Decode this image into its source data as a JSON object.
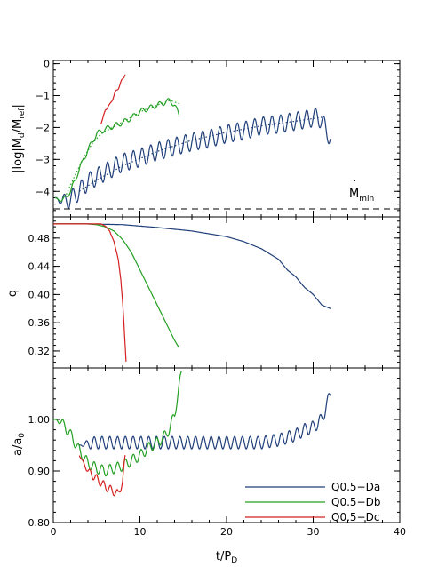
{
  "chart_data": [
    {
      "type": "line",
      "panel": "top",
      "ylabel": "|log|Ṁd/Ṁref|",
      "ylabel_parts": {
        "pre": "|log|",
        "m1": "M",
        "s1": "d",
        "mid": "/",
        "m2": "M",
        "s2": "ref",
        "post": "|"
      },
      "xlim": [
        0,
        40
      ],
      "ylim": [
        -4.8,
        0.1
      ],
      "yticks": [
        0,
        -1,
        -2,
        -3,
        -4
      ],
      "ytick_labels": [
        "0",
        "−1",
        "−2",
        "−3",
        "−4"
      ],
      "annotation": {
        "text": "Ṁmin",
        "main": "M",
        "sub": "min",
        "dot": "˙"
      },
      "reference_line": {
        "y": -4.55,
        "style": "dashed"
      },
      "series": [
        {
          "key": "Da",
          "color": "#1f3f7a",
          "oscillation": {
            "amp": 0.28,
            "period": 1.0
          },
          "x": [
            0.2,
            1,
            2,
            3,
            4,
            6,
            8,
            10,
            12,
            14,
            16,
            18,
            20,
            22,
            24,
            26,
            28,
            29,
            30,
            30.5,
            31,
            32
          ],
          "y": [
            -4.2,
            -4.3,
            -4.25,
            -4.0,
            -3.7,
            -3.4,
            -3.1,
            -2.95,
            -2.75,
            -2.6,
            -2.45,
            -2.35,
            -2.2,
            -2.1,
            -1.95,
            -1.9,
            -1.8,
            -1.75,
            -1.7,
            -1.65,
            -1.8,
            -2.35
          ]
        },
        {
          "key": "Da-fit",
          "color": "#1f3f7a",
          "style": "dotted",
          "x": [
            3,
            5,
            8,
            12,
            16,
            20,
            24,
            28,
            31
          ],
          "y": [
            -4.0,
            -3.65,
            -3.2,
            -2.75,
            -2.4,
            -2.15,
            -1.95,
            -1.8,
            -1.68
          ]
        },
        {
          "key": "Db",
          "color": "#22a022",
          "oscillation": {
            "amp": 0.08,
            "period": 1.0
          },
          "x": [
            0.2,
            1,
            2,
            3,
            4,
            5,
            6,
            7,
            8,
            9,
            10,
            11,
            12,
            13,
            13.5,
            14,
            14.5
          ],
          "y": [
            -4.2,
            -4.3,
            -4.0,
            -3.3,
            -2.7,
            -2.2,
            -2.05,
            -1.95,
            -1.85,
            -1.7,
            -1.5,
            -1.4,
            -1.3,
            -1.2,
            -1.15,
            -1.3,
            -1.6
          ]
        },
        {
          "key": "Db-fit",
          "color": "#22a022",
          "style": "dotted",
          "x": [
            1.5,
            2.5,
            3.5,
            4.5,
            5.5,
            6.5,
            7.5,
            8.5,
            9.5,
            10.5,
            11.5,
            12.5,
            13.5,
            14.5
          ],
          "y": [
            -4.1,
            -3.5,
            -2.95,
            -2.5,
            -2.2,
            -2.05,
            -1.9,
            -1.75,
            -1.6,
            -1.45,
            -1.35,
            -1.25,
            -1.15,
            -1.25
          ]
        },
        {
          "key": "Dc",
          "color": "#d42020",
          "oscillation": {
            "amp": 0.05,
            "period": 0.7
          },
          "x": [
            5.5,
            6.0,
            6.5,
            7.0,
            7.5,
            8.0,
            8.3
          ],
          "y": [
            -1.9,
            -1.45,
            -1.3,
            -1.0,
            -0.75,
            -0.5,
            -0.3
          ]
        }
      ]
    },
    {
      "type": "line",
      "panel": "middle",
      "ylabel": "q",
      "xlim": [
        0,
        40
      ],
      "ylim": [
        0.296,
        0.51
      ],
      "yticks": [
        0.48,
        0.44,
        0.4,
        0.36,
        0.32
      ],
      "ytick_labels": [
        "0.48",
        "0.44",
        "0.40",
        "0.36",
        "0.32"
      ],
      "series": [
        {
          "key": "Da",
          "color": "#1f3f7a",
          "x": [
            0,
            4,
            8,
            12,
            16,
            20,
            22,
            24,
            26,
            27,
            28,
            29,
            30,
            31,
            32
          ],
          "y": [
            0.5,
            0.5,
            0.499,
            0.495,
            0.49,
            0.482,
            0.475,
            0.465,
            0.45,
            0.435,
            0.425,
            0.41,
            0.4,
            0.385,
            0.38
          ]
        },
        {
          "key": "Db",
          "color": "#22a022",
          "x": [
            0,
            4,
            5,
            6,
            7,
            8,
            9,
            10,
            11,
            12,
            13,
            14,
            14.5
          ],
          "y": [
            0.5,
            0.5,
            0.499,
            0.496,
            0.49,
            0.478,
            0.46,
            0.435,
            0.41,
            0.385,
            0.36,
            0.335,
            0.325
          ]
        },
        {
          "key": "Dc",
          "color": "#d42020",
          "x": [
            0,
            5.5,
            6.0,
            6.5,
            7.0,
            7.5,
            7.8,
            8.0,
            8.2,
            8.4
          ],
          "y": [
            0.5,
            0.5,
            0.497,
            0.49,
            0.475,
            0.45,
            0.42,
            0.39,
            0.35,
            0.305
          ]
        }
      ]
    },
    {
      "type": "line",
      "panel": "bottom",
      "ylabel": "a/a0",
      "ylabel_parts": {
        "main": "a/a",
        "sub": "0"
      },
      "xlabel": "t/PD",
      "xlabel_parts": {
        "main": "t/P",
        "sub": "D"
      },
      "xlim": [
        0,
        40
      ],
      "xticks": [
        0,
        10,
        20,
        30,
        40
      ],
      "xtick_labels": [
        "0",
        "10",
        "20",
        "30",
        "40"
      ],
      "ylim": [
        0.8,
        1.1
      ],
      "yticks": [
        1.0,
        0.9,
        0.8
      ],
      "ytick_labels": [
        "1.00",
        "0.90",
        "0.80"
      ],
      "series": [
        {
          "key": "Da",
          "color": "#1f3f7a",
          "name": "Q0.5−Da",
          "oscillation": {
            "amp": 0.012,
            "period": 0.9
          },
          "x": [
            3,
            5,
            8,
            12,
            16,
            20,
            24,
            26,
            27,
            28,
            29,
            30,
            31,
            32
          ],
          "y": [
            0.95,
            0.955,
            0.955,
            0.955,
            0.955,
            0.955,
            0.955,
            0.96,
            0.965,
            0.97,
            0.98,
            0.985,
            1.0,
            1.05
          ]
        },
        {
          "key": "Db",
          "color": "#22a022",
          "name": "Q0.5−Db",
          "oscillation": {
            "amp": 0.01,
            "period": 0.9
          },
          "x": [
            0,
            1,
            2,
            3,
            4,
            5,
            6,
            7,
            8,
            9,
            10,
            11,
            12,
            13,
            13.5,
            14,
            14.5,
            14.8
          ],
          "y": [
            1.0,
            0.995,
            0.97,
            0.94,
            0.915,
            0.905,
            0.9,
            0.905,
            0.91,
            0.92,
            0.93,
            0.945,
            0.955,
            0.97,
            0.985,
            1.01,
            1.06,
            1.09
          ]
        },
        {
          "key": "Dc",
          "color": "#d42020",
          "name": "Q0.5−Dc",
          "oscillation": {
            "amp": 0.008,
            "period": 0.8
          },
          "x": [
            3,
            4,
            5,
            6,
            7,
            7.5,
            8.0,
            8.3
          ],
          "y": [
            0.93,
            0.9,
            0.885,
            0.87,
            0.86,
            0.855,
            0.88,
            0.925
          ]
        }
      ],
      "legend_placement": "bottom-right"
    }
  ]
}
